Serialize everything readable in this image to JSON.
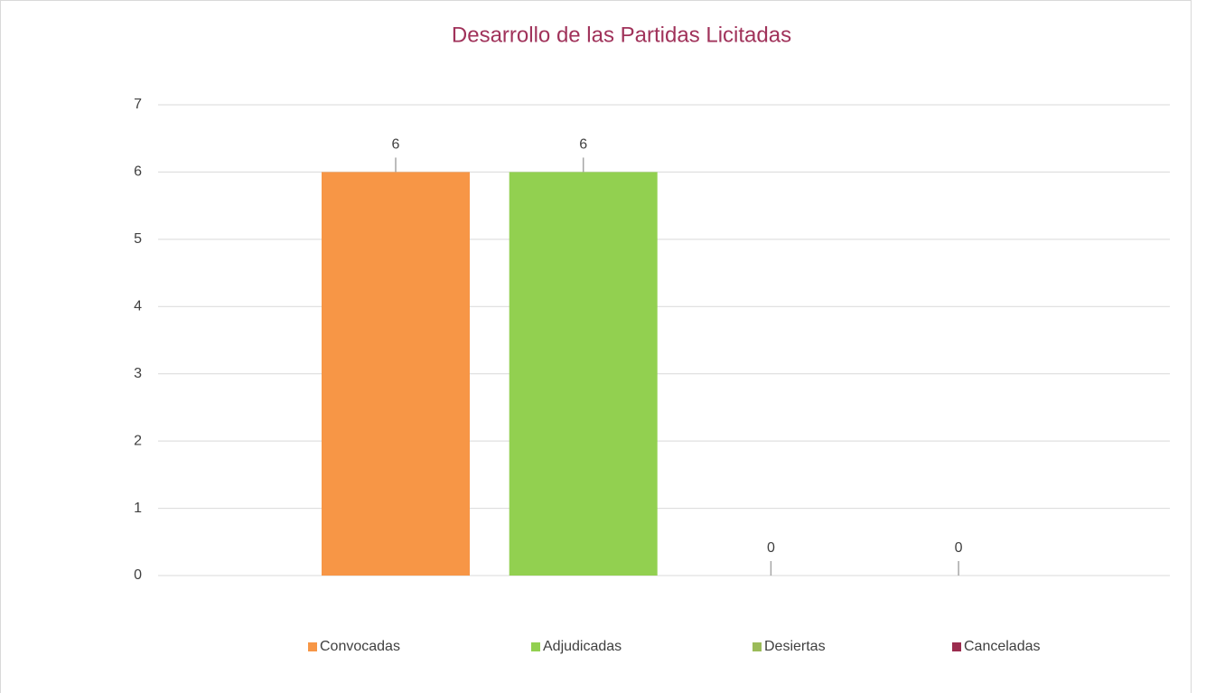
{
  "chart_data": {
    "type": "bar",
    "title": "Desarrollo de las Partidas Licitadas",
    "categories": [
      null
    ],
    "series": [
      {
        "name": "Convocadas",
        "color": "#f79646",
        "values": [
          6
        ]
      },
      {
        "name": "Adjudicadas",
        "color": "#92d050",
        "values": [
          6
        ]
      },
      {
        "name": "Desiertas",
        "color": "#9bbb59",
        "values": [
          0
        ]
      },
      {
        "name": "Canceladas",
        "color": "#9b2c4e",
        "values": [
          0
        ]
      }
    ],
    "ylim": [
      0,
      7
    ],
    "yticks": [
      0,
      1,
      2,
      3,
      4,
      5,
      6,
      7
    ],
    "grid": true,
    "legend": "bottom",
    "title_color": "#a0325a"
  }
}
